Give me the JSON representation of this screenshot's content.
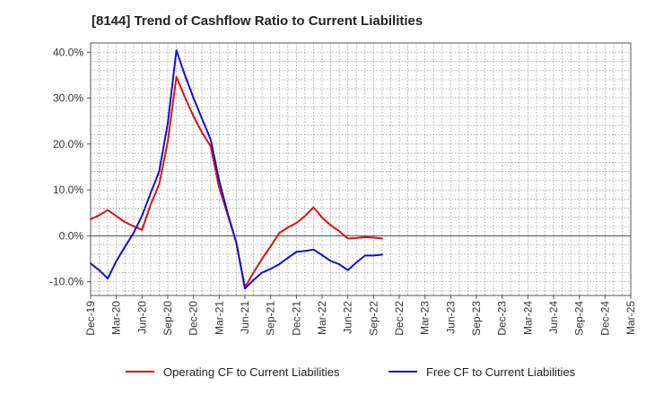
{
  "chart_data": {
    "type": "line",
    "title": "[8144]  Trend of Cashflow Ratio to Current Liabilities",
    "xlabel": "",
    "ylabel": "",
    "ylim": [
      -13,
      42
    ],
    "y_ticks": [
      40,
      30,
      20,
      10,
      0,
      -10
    ],
    "y_tick_labels": [
      "40.0%",
      "30.0%",
      "20.0%",
      "10.0%",
      "0.0%",
      "-10.0%"
    ],
    "x_tick_labels": [
      "Dec-19",
      "Mar-20",
      "Jun-20",
      "Sep-20",
      "Dec-20",
      "Mar-21",
      "Jun-21",
      "Sep-21",
      "Dec-21",
      "Mar-22",
      "Jun-22",
      "Sep-22",
      "Dec-22",
      "Mar-23",
      "Jun-23",
      "Sep-23",
      "Dec-23",
      "Mar-24",
      "Jun-24",
      "Sep-24",
      "Dec-24",
      "Mar-25"
    ],
    "grid": true,
    "legend_position": "bottom",
    "series": [
      {
        "name": "Operating CF to Current Liabilities",
        "color": "#dd1111",
        "values": [
          3.6,
          4.5,
          5.6,
          4.3,
          3.0,
          2.1,
          1.3,
          6.8,
          11.2,
          20.5,
          34.6,
          30.2,
          26.0,
          22.5,
          19.5,
          10.5,
          4.5,
          -1.5,
          -11.2,
          -8.0,
          -5.0,
          -2.3,
          0.6,
          1.8,
          2.8,
          4.3,
          6.2,
          4.0,
          2.3,
          1.0,
          -0.6,
          -0.5,
          -0.3,
          -0.4,
          -0.6
        ]
      },
      {
        "name": "Free CF to Current Liabilities",
        "color": "#1111cc",
        "values": [
          -6.0,
          -7.5,
          -9.3,
          -5.5,
          -2.4,
          0.6,
          4.4,
          9.3,
          14.0,
          24.5,
          40.4,
          35.0,
          30.0,
          25.5,
          21.0,
          12.0,
          4.8,
          -1.5,
          -11.5,
          -9.6,
          -8.0,
          -7.2,
          -6.2,
          -4.8,
          -3.5,
          -3.3,
          -3.0,
          -4.2,
          -5.5,
          -6.2,
          -7.5,
          -5.8,
          -4.3,
          -4.3,
          -4.1
        ]
      }
    ]
  }
}
